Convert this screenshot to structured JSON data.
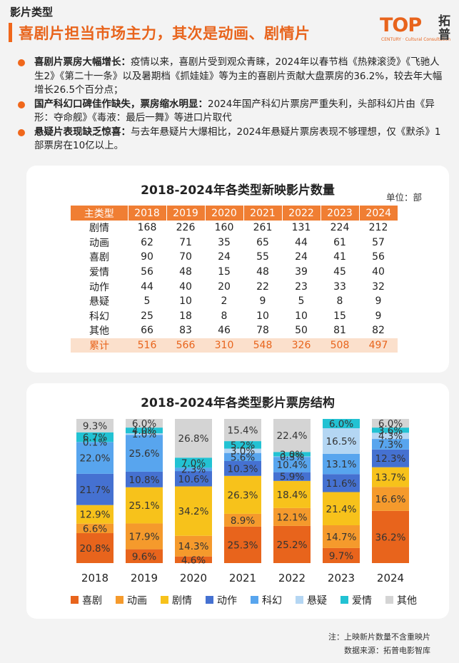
{
  "header": {
    "section_label": "影片类型",
    "title": "喜剧片担当市场主力，其次是动画、剧情片",
    "logo_text": "TOP",
    "logo_subtext": "CENTURY · Cultural Consultation",
    "logo_cn": "拓普"
  },
  "bullets": [
    {
      "lead": "喜剧片票房大幅增长：",
      "text": "疫情以来，喜剧片受到观众青睐，2024年以春节档《热辣滚烫》《飞驰人生2》《第二十一条》以及暑期档《抓娃娃》等为主的喜剧片贡献大盘票房的36.2%，较去年大幅增长26.5个百分点；"
    },
    {
      "lead": "国产科幻口碑佳作缺失，票房缩水明显：",
      "text": "2024年国产科幻片票房严重失利，头部科幻片由《异形：夺命舰》《毒液：最后一舞》等进口片取代"
    },
    {
      "lead": "悬疑片表现缺乏惊喜：",
      "text": "与去年悬疑片大爆相比，2024年悬疑片票房表现不够理想，仅《默杀》1部票房在10亿以上。"
    }
  ],
  "table": {
    "title": "2018-2024年各类型新映影片数量",
    "unit": "单位：部",
    "headers": [
      "主类型",
      "2018",
      "2019",
      "2020",
      "2021",
      "2022",
      "2023",
      "2024"
    ],
    "rows": [
      [
        "剧情",
        "168",
        "226",
        "160",
        "261",
        "131",
        "224",
        "212"
      ],
      [
        "动画",
        "62",
        "71",
        "35",
        "65",
        "44",
        "61",
        "57"
      ],
      [
        "喜剧",
        "90",
        "70",
        "24",
        "55",
        "24",
        "41",
        "56"
      ],
      [
        "爱情",
        "56",
        "48",
        "15",
        "48",
        "39",
        "45",
        "40"
      ],
      [
        "动作",
        "44",
        "40",
        "20",
        "22",
        "23",
        "33",
        "32"
      ],
      [
        "悬疑",
        "5",
        "10",
        "2",
        "9",
        "5",
        "8",
        "9"
      ],
      [
        "科幻",
        "25",
        "18",
        "8",
        "10",
        "10",
        "15",
        "9"
      ],
      [
        "其他",
        "66",
        "83",
        "46",
        "78",
        "50",
        "81",
        "82"
      ]
    ],
    "total": [
      "累计",
      "516",
      "566",
      "310",
      "548",
      "326",
      "508",
      "497"
    ]
  },
  "chart_data": {
    "type": "bar",
    "stacked": true,
    "percent": true,
    "title": "2018-2024年各类型影片票房结构",
    "categories": [
      "2018",
      "2019",
      "2020",
      "2021",
      "2022",
      "2023",
      "2024"
    ],
    "series": [
      {
        "name": "喜剧",
        "color": "#e8641c",
        "values": [
          20.8,
          9.6,
          4.6,
          25.3,
          25.2,
          9.7,
          36.2
        ]
      },
      {
        "name": "动画",
        "color": "#f59a2c",
        "values": [
          6.6,
          17.9,
          14.3,
          8.9,
          12.1,
          14.7,
          16.6
        ]
      },
      {
        "name": "剧情",
        "color": "#f7c21b",
        "values": [
          12.9,
          25.1,
          34.2,
          26.3,
          18.4,
          21.4,
          13.7
        ]
      },
      {
        "name": "动作",
        "color": "#4571d1",
        "values": [
          21.7,
          10.8,
          10.6,
          10.3,
          5.9,
          11.6,
          12.3
        ]
      },
      {
        "name": "科幻",
        "color": "#58a5ee",
        "values": [
          22.0,
          25.6,
          2.3,
          5.6,
          10.4,
          13.1,
          7.3
        ]
      },
      {
        "name": "悬疑",
        "color": "#b4d6f3",
        "values": [
          0.1,
          1.0,
          0.0,
          3.0,
          0.3,
          16.5,
          4.3
        ]
      },
      {
        "name": "爱情",
        "color": "#22c2d3",
        "values": [
          6.7,
          4.0,
          7.0,
          5.2,
          3.0,
          6.0,
          3.6
        ]
      },
      {
        "name": "其他",
        "color": "#d4d4d4",
        "values": [
          9.3,
          6.0,
          26.8,
          15.4,
          22.4,
          0.0,
          6.0
        ]
      }
    ],
    "labels": [
      [
        "20.8%",
        "6.6%",
        "12.9%",
        "21.7%",
        "22.0%",
        "0.1%",
        "6.7%",
        "9.3%"
      ],
      [
        "9.6%",
        "17.9%",
        "25.1%",
        "10.8%",
        "25.6%",
        "1.0%",
        "4.0%",
        "6.0%"
      ],
      [
        "4.6%",
        "14.3%",
        "34.2%",
        "10.6%",
        "2.3%",
        "",
        "7.0%",
        "26.8%"
      ],
      [
        "25.3%",
        "8.9%",
        "26.3%",
        "10.3%",
        "5.6%",
        "3.0%",
        "5.2%",
        "15.4%"
      ],
      [
        "25.2%",
        "12.1%",
        "18.4%",
        "5.9%",
        "10.4%",
        "0.3%",
        "3.0%",
        "22.4%"
      ],
      [
        "9.7%",
        "14.7%",
        "21.4%",
        "11.6%",
        "13.1%",
        "16.5%",
        "6.0%",
        ""
      ],
      [
        "36.2%",
        "16.6%",
        "13.7%",
        "12.3%",
        "7.3%",
        "4.3%",
        "3.6%",
        "6.0%"
      ]
    ],
    "ylim": [
      0,
      100
    ],
    "legend_position": "bottom"
  },
  "notes": {
    "note": "注：上映新片数量不含重映片",
    "source": "数据来源：拓普电影智库"
  }
}
